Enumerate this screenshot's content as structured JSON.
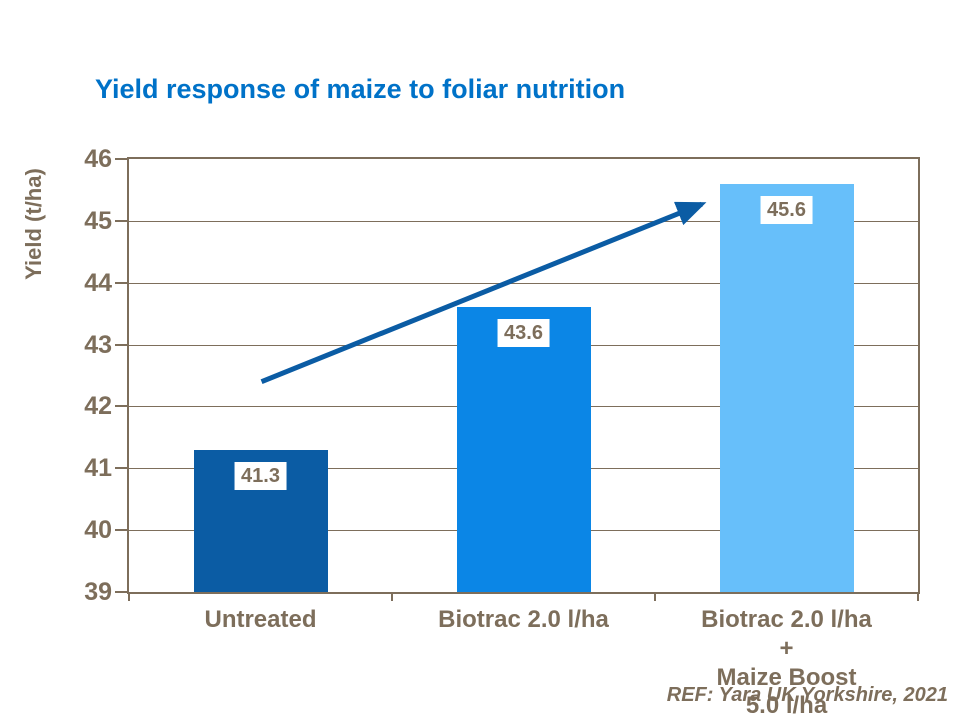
{
  "slide": {
    "title": "Yield response of maize to foliar nutrition",
    "reference": "REF: Yara UK Yorkshire, 2021"
  },
  "chart_data": {
    "type": "bar",
    "title": "Yield response of maize to foliar nutrition",
    "ylabel": "Yield (t/ha)",
    "xlabel": "",
    "categories": [
      "Untreated",
      "Biotrac 2.0 l/ha",
      "Biotrac 2.0 l/ha +\nMaize Boost 5.0 l/ha"
    ],
    "values": [
      41.3,
      43.6,
      45.6
    ],
    "value_labels": [
      "41.3",
      "43.6",
      "45.6"
    ],
    "ylim": [
      39,
      46
    ],
    "yticks": [
      39,
      40,
      41,
      42,
      43,
      44,
      45,
      46
    ],
    "grid": "horizontal",
    "legend": "none",
    "bar_colors": [
      "#0b5ca4",
      "#0b86e6",
      "#67bffa"
    ],
    "annotation_arrow": {
      "description": "upward trend arrow from above first bar to above third bar",
      "color": "#0b5ca4",
      "x1_frac": 0.168,
      "y1_value": 42.4,
      "x2_frac": 0.726,
      "y2_value": 45.27
    }
  },
  "colors": {
    "title": "#0072c8",
    "axis_text": "#7d6e5b",
    "plot_border": "#7d6e5b",
    "gridline": "#7d6e5b",
    "background": "#ffffff",
    "label_box_bg": "#ffffff"
  }
}
